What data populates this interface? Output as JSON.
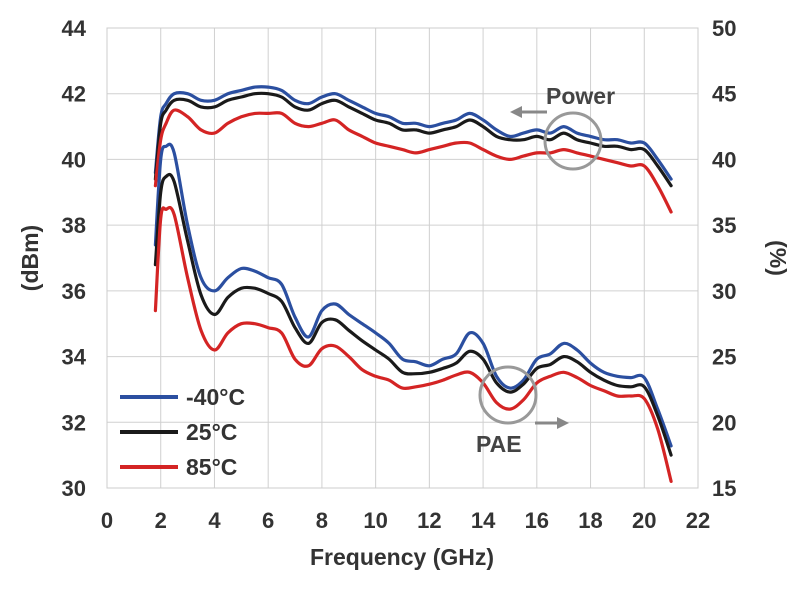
{
  "chart_data": {
    "type": "line",
    "xlabel": "Frequency (GHz)",
    "ylabel": "(dBm)",
    "y2label": "(%)",
    "xlim": [
      0,
      22
    ],
    "ylim": [
      30,
      44
    ],
    "y2lim": [
      15,
      50
    ],
    "xticks": [
      "0",
      "2",
      "4",
      "6",
      "8",
      "10",
      "12",
      "14",
      "16",
      "18",
      "20",
      "22"
    ],
    "yticks": [
      "30",
      "32",
      "34",
      "36",
      "38",
      "40",
      "42",
      "44"
    ],
    "y2ticks": [
      "15",
      "20",
      "25",
      "30",
      "35",
      "40",
      "45",
      "50"
    ],
    "grid": true,
    "legend_position": "bottom-left",
    "annotations": [
      {
        "text": "Power",
        "arrow": "left",
        "x": 17.5,
        "y": 40.6
      },
      {
        "text": "PAE",
        "arrow": "right",
        "x": 15.0,
        "y": 32.9
      }
    ],
    "series": [
      {
        "name": "-40°C",
        "color": "#2b4fa0",
        "axis": "left",
        "group": "Power",
        "x": [
          1.8,
          2.0,
          2.2,
          2.5,
          3.0,
          3.5,
          4.0,
          4.5,
          5.0,
          5.5,
          6.0,
          6.5,
          7.0,
          7.5,
          8.0,
          8.5,
          9.0,
          9.5,
          10.0,
          10.5,
          11.0,
          11.5,
          12.0,
          12.5,
          13.0,
          13.5,
          14.0,
          14.5,
          15.0,
          15.5,
          16.0,
          16.5,
          17.0,
          17.5,
          18.0,
          18.5,
          19.0,
          19.5,
          20.0,
          20.5,
          21.0
        ],
        "values": [
          39.6,
          41.3,
          41.7,
          42.0,
          42.0,
          41.8,
          41.8,
          42.0,
          42.1,
          42.2,
          42.2,
          42.1,
          41.8,
          41.7,
          41.9,
          42.0,
          41.8,
          41.6,
          41.4,
          41.3,
          41.1,
          41.1,
          41.0,
          41.1,
          41.2,
          41.4,
          41.2,
          40.9,
          40.7,
          40.8,
          40.9,
          40.8,
          41.0,
          40.8,
          40.7,
          40.6,
          40.6,
          40.5,
          40.5,
          40.0,
          39.4
        ]
      },
      {
        "name": "25°C",
        "color": "#1a1a1a",
        "axis": "left",
        "group": "Power",
        "x": [
          1.8,
          2.0,
          2.2,
          2.5,
          3.0,
          3.5,
          4.0,
          4.5,
          5.0,
          5.5,
          6.0,
          6.5,
          7.0,
          7.5,
          8.0,
          8.5,
          9.0,
          9.5,
          10.0,
          10.5,
          11.0,
          11.5,
          12.0,
          12.5,
          13.0,
          13.5,
          14.0,
          14.5,
          15.0,
          15.5,
          16.0,
          16.5,
          17.0,
          17.5,
          18.0,
          18.5,
          19.0,
          19.5,
          20.0,
          20.5,
          21.0
        ],
        "values": [
          39.4,
          41.1,
          41.5,
          41.8,
          41.8,
          41.6,
          41.6,
          41.8,
          41.9,
          42.0,
          42.0,
          41.9,
          41.6,
          41.5,
          41.7,
          41.8,
          41.6,
          41.4,
          41.2,
          41.1,
          40.9,
          40.9,
          40.8,
          40.9,
          41.0,
          41.2,
          41.0,
          40.7,
          40.6,
          40.6,
          40.7,
          40.6,
          40.8,
          40.6,
          40.5,
          40.4,
          40.4,
          40.3,
          40.3,
          39.8,
          39.2
        ]
      },
      {
        "name": "85°C",
        "color": "#d42424",
        "axis": "left",
        "group": "Power",
        "x": [
          1.8,
          2.0,
          2.2,
          2.5,
          3.0,
          3.5,
          4.0,
          4.5,
          5.0,
          5.5,
          6.0,
          6.5,
          7.0,
          7.5,
          8.0,
          8.5,
          9.0,
          9.5,
          10.0,
          10.5,
          11.0,
          11.5,
          12.0,
          12.5,
          13.0,
          13.5,
          14.0,
          14.5,
          15.0,
          15.5,
          16.0,
          16.5,
          17.0,
          17.5,
          18.0,
          18.5,
          19.0,
          19.5,
          20.0,
          20.5,
          21.0
        ],
        "values": [
          39.2,
          40.6,
          41.1,
          41.5,
          41.3,
          40.9,
          40.8,
          41.1,
          41.3,
          41.4,
          41.4,
          41.4,
          41.1,
          41.0,
          41.1,
          41.2,
          40.9,
          40.7,
          40.5,
          40.4,
          40.3,
          40.2,
          40.3,
          40.4,
          40.5,
          40.5,
          40.3,
          40.1,
          40.0,
          40.1,
          40.2,
          40.2,
          40.3,
          40.2,
          40.1,
          40.0,
          39.9,
          39.8,
          39.8,
          39.2,
          38.4
        ]
      },
      {
        "name": "-40°C",
        "color": "#2b4fa0",
        "axis": "right",
        "group": "PAE",
        "x": [
          1.8,
          2.0,
          2.2,
          2.5,
          3.0,
          3.5,
          4.0,
          4.5,
          5.0,
          5.5,
          6.0,
          6.5,
          7.0,
          7.5,
          8.0,
          8.5,
          9.0,
          9.5,
          10.0,
          10.5,
          11.0,
          11.5,
          12.0,
          12.5,
          13.0,
          13.5,
          14.0,
          14.5,
          15.0,
          15.5,
          16.0,
          16.5,
          17.0,
          17.5,
          18.0,
          18.5,
          19.0,
          19.5,
          20.0,
          20.5,
          21.0
        ],
        "values": [
          33.5,
          40.0,
          41.0,
          40.5,
          35.0,
          31.0,
          30.0,
          31.0,
          31.7,
          31.5,
          31.0,
          30.5,
          28.0,
          26.5,
          28.5,
          29.0,
          28.2,
          27.5,
          26.8,
          26.0,
          24.8,
          24.6,
          24.3,
          24.8,
          25.2,
          26.8,
          26.0,
          23.5,
          22.6,
          23.2,
          24.8,
          25.2,
          26.0,
          25.5,
          24.5,
          23.8,
          23.5,
          23.4,
          23.4,
          21.0,
          18.2
        ]
      },
      {
        "name": "25°C",
        "color": "#1a1a1a",
        "axis": "right",
        "group": "PAE",
        "x": [
          1.8,
          2.0,
          2.2,
          2.5,
          3.0,
          3.5,
          4.0,
          4.5,
          5.0,
          5.5,
          6.0,
          6.5,
          7.0,
          7.5,
          8.0,
          8.5,
          9.0,
          9.5,
          10.0,
          10.5,
          11.0,
          11.5,
          12.0,
          12.5,
          13.0,
          13.5,
          14.0,
          14.5,
          15.0,
          15.5,
          16.0,
          16.5,
          17.0,
          17.5,
          18.0,
          18.5,
          19.0,
          19.5,
          20.0,
          20.5,
          21.0
        ],
        "values": [
          32.0,
          37.5,
          38.7,
          38.3,
          33.8,
          29.7,
          28.2,
          29.5,
          30.2,
          30.2,
          29.8,
          29.2,
          27.2,
          26.0,
          27.6,
          27.8,
          27.0,
          26.2,
          25.5,
          24.8,
          23.8,
          23.7,
          23.8,
          24.1,
          24.5,
          25.4,
          24.8,
          23.0,
          22.3,
          22.9,
          24.1,
          24.4,
          25.0,
          24.6,
          23.8,
          23.2,
          22.8,
          22.7,
          22.7,
          20.5,
          17.5
        ]
      },
      {
        "name": "85°C",
        "color": "#d42424",
        "axis": "right",
        "group": "PAE",
        "x": [
          1.8,
          2.0,
          2.2,
          2.5,
          3.0,
          3.5,
          4.0,
          4.5,
          5.0,
          5.5,
          6.0,
          6.5,
          7.0,
          7.5,
          8.0,
          8.5,
          9.0,
          9.5,
          10.0,
          10.5,
          11.0,
          11.5,
          12.0,
          12.5,
          13.0,
          13.5,
          14.0,
          14.5,
          15.0,
          15.5,
          16.0,
          16.5,
          17.0,
          17.5,
          18.0,
          18.5,
          19.0,
          19.5,
          20.0,
          20.5,
          21.0
        ],
        "values": [
          28.5,
          35.5,
          36.2,
          35.8,
          31.0,
          27.0,
          25.5,
          26.8,
          27.5,
          27.5,
          27.2,
          26.8,
          24.8,
          24.3,
          25.6,
          25.8,
          25.0,
          24.0,
          23.5,
          23.2,
          22.6,
          22.7,
          22.9,
          23.2,
          23.6,
          23.8,
          23.0,
          21.5,
          21.0,
          21.7,
          23.0,
          23.5,
          23.8,
          23.4,
          22.8,
          22.4,
          22.0,
          22.0,
          21.8,
          19.5,
          15.5
        ]
      }
    ]
  }
}
